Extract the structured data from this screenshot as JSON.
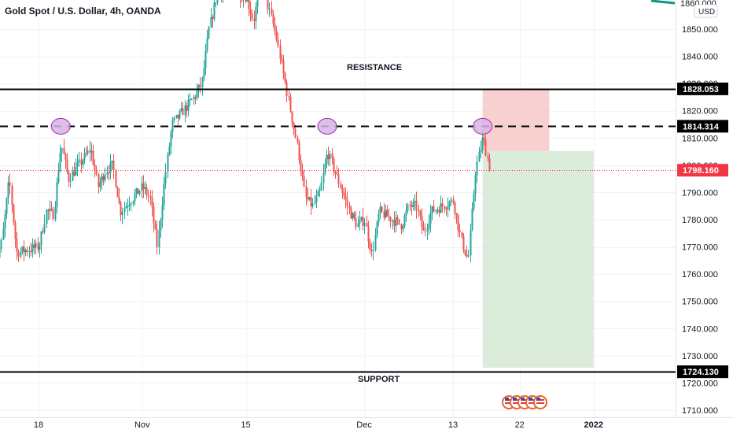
{
  "header": {
    "symbol_title": "Gold Spot / U.S. Dollar, 4h, OANDA"
  },
  "price_axis": {
    "currency": "USD",
    "top_partial_label": "1860.000"
  },
  "annotations": {
    "resistance_label": "RESISTANCE",
    "support_label": "SUPPORT"
  },
  "chart_data": {
    "type": "candlestick",
    "instrument": "Gold Spot / U.S. Dollar",
    "timeframe": "4h",
    "source": "OANDA",
    "currency": "USD",
    "y_ticks": [
      1710,
      1720,
      1730,
      1740,
      1750,
      1760,
      1770,
      1780,
      1790,
      1800,
      1810,
      1820,
      1830,
      1840,
      1850
    ],
    "ylim": [
      1705,
      1861
    ],
    "x_ticks": [
      "18",
      "Nov",
      "15",
      "Dec",
      "13",
      "22",
      "2022"
    ],
    "x_tick_bold": [
      false,
      false,
      false,
      false,
      false,
      false,
      true
    ],
    "xlim": [
      "2021-10-12",
      "2022-01-04"
    ],
    "x_tick_dates": [
      "2021-10-18",
      "2021-11-01",
      "2021-11-15",
      "2021-12-01",
      "2021-12-13",
      "2021-12-22",
      "2022-01-01"
    ],
    "levels": [
      {
        "name": "resistance",
        "value": 1828.053,
        "style": "solid",
        "label": "1828.053"
      },
      {
        "name": "short-entry",
        "value": 1814.314,
        "style": "dashed",
        "label": "1814.314"
      },
      {
        "name": "support",
        "value": 1724.13,
        "style": "solid",
        "label": "1724.130"
      }
    ],
    "current_price": {
      "value": 1798.16,
      "label": "1798.160",
      "color": "#f23645"
    },
    "position": {
      "direction": "short",
      "entry": 1805.2,
      "stop": 1828.0,
      "target": 1725.6,
      "start": "2021-12-17",
      "risk_end": "2021-12-26",
      "reward_end": "2022-01-01"
    },
    "touch_markers": [
      {
        "date": "2021-10-21",
        "price": 1814.3
      },
      {
        "date": "2021-11-26",
        "price": 1814.3
      },
      {
        "date": "2021-12-17",
        "price": 1814.3
      }
    ],
    "close_path": [
      [
        "2021-10-12",
        1762
      ],
      [
        "2021-10-13",
        1772
      ],
      [
        "2021-10-14",
        1795
      ],
      [
        "2021-10-15",
        1768
      ],
      [
        "2021-10-18",
        1770
      ],
      [
        "2021-10-19",
        1783
      ],
      [
        "2021-10-20",
        1782
      ],
      [
        "2021-10-21",
        1808
      ],
      [
        "2021-10-22",
        1795
      ],
      [
        "2021-10-25",
        1806
      ],
      [
        "2021-10-26",
        1792
      ],
      [
        "2021-10-27",
        1798
      ],
      [
        "2021-10-28",
        1800
      ],
      [
        "2021-10-29",
        1783
      ],
      [
        "2021-11-01",
        1792
      ],
      [
        "2021-11-02",
        1788
      ],
      [
        "2021-11-03",
        1770
      ],
      [
        "2021-11-04",
        1795
      ],
      [
        "2021-11-05",
        1815
      ],
      [
        "2021-11-08",
        1825
      ],
      [
        "2021-11-09",
        1830
      ],
      [
        "2021-11-10",
        1850
      ],
      [
        "2021-11-11",
        1862
      ],
      [
        "2021-11-12",
        1865
      ],
      [
        "2021-11-15",
        1862
      ],
      [
        "2021-11-16",
        1853
      ],
      [
        "2021-11-17",
        1868
      ],
      [
        "2021-11-18",
        1858
      ],
      [
        "2021-11-19",
        1848
      ],
      [
        "2021-11-22",
        1806
      ],
      [
        "2021-11-23",
        1788
      ],
      [
        "2021-11-24",
        1785
      ],
      [
        "2021-11-25",
        1790
      ],
      [
        "2021-11-26",
        1805
      ],
      [
        "2021-11-29",
        1783
      ],
      [
        "2021-11-30",
        1778
      ],
      [
        "2021-12-01",
        1780
      ],
      [
        "2021-12-02",
        1767
      ],
      [
        "2021-12-03",
        1783
      ],
      [
        "2021-12-06",
        1778
      ],
      [
        "2021-12-07",
        1785
      ],
      [
        "2021-12-08",
        1785
      ],
      [
        "2021-12-09",
        1775
      ],
      [
        "2021-12-10",
        1783
      ],
      [
        "2021-12-13",
        1787
      ],
      [
        "2021-12-14",
        1773
      ],
      [
        "2021-12-15",
        1765
      ],
      [
        "2021-12-16",
        1798
      ],
      [
        "2021-12-17",
        1810
      ],
      [
        "2021-12-18",
        1798
      ]
    ]
  },
  "colors": {
    "bull": "#26a69a",
    "bear": "#ef5350",
    "risk_zone": "#f8c4c4",
    "reward_zone": "#d7ead6",
    "marker": "#d8b4e6",
    "marker_stroke": "#9c27b0",
    "level_line": "#000000",
    "axis_text": "#131722"
  }
}
